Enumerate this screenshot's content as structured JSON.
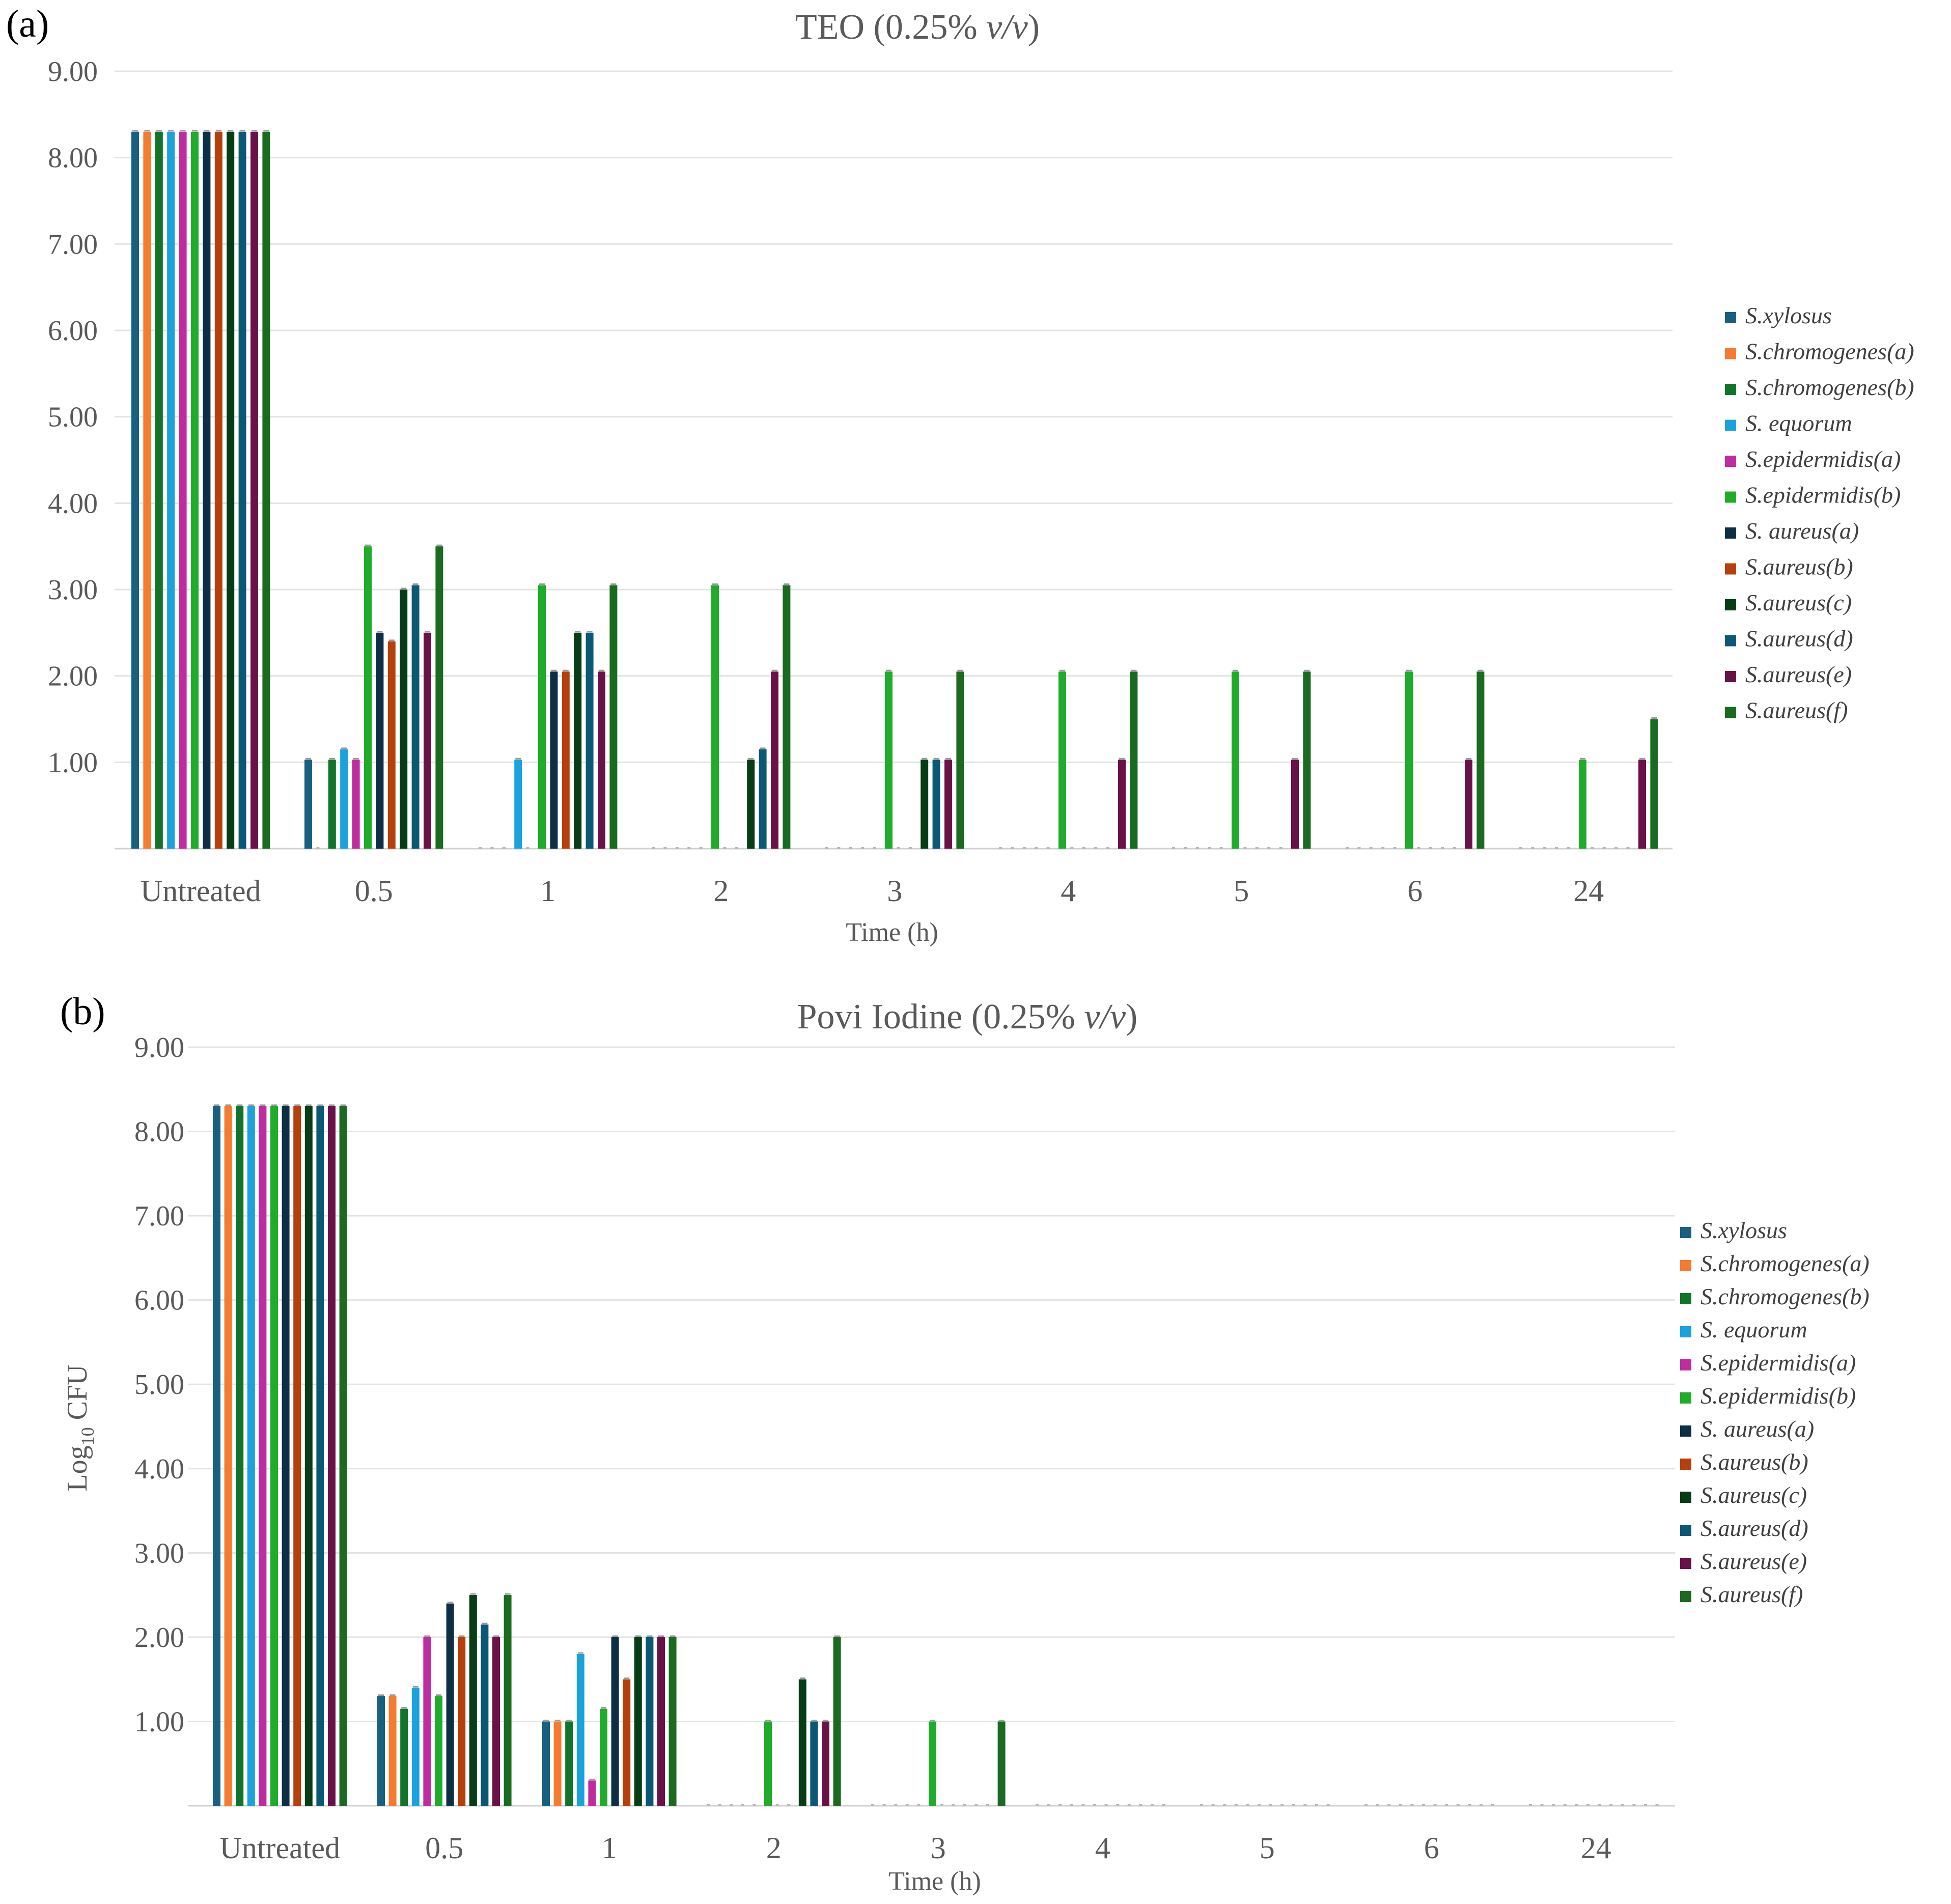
{
  "colors": [
    "#17607f",
    "#f47b30",
    "#11742b",
    "#1ba1dd",
    "#be2c9f",
    "#1fac2b",
    "#0c2f45",
    "#b5400c",
    "#063d16",
    "#0b5875",
    "#6a1248",
    "#1a6b20"
  ],
  "chart_data": [
    {
      "type": "bar",
      "panel_label": "(a)",
      "title_main": "TEO (0.25% ",
      "title_em": "v/v",
      "title_end": ")",
      "xlabel": "Time (h)",
      "ylabel": "",
      "ylim": [
        0,
        9
      ],
      "yticks": [
        "9.00",
        "8.00",
        "7.00",
        "6.00",
        "5.00",
        "4.00",
        "3.00",
        "2.00",
        "1.00"
      ],
      "categories": [
        "Untreated",
        "0.5",
        "1",
        "2",
        "3",
        "4",
        "5",
        "6",
        "24"
      ],
      "legend": [
        "S.xylosus",
        "S.chromogenes(a)",
        "S.chromogenes(b)",
        "S. equorum",
        "S.epidermidis(a)",
        "S.epidermidis(b)",
        "S. aureus(a)",
        "S.aureus(b)",
        "S.aureus(c)",
        "S.aureus(d)",
        "S.aureus(e)",
        "S.aureus(f)"
      ],
      "series": [
        {
          "name": "S.xylosus",
          "values": [
            8.3,
            1.03,
            0,
            0,
            0,
            0,
            0,
            0,
            0
          ]
        },
        {
          "name": "S.chromogenes(a)",
          "values": [
            8.3,
            0,
            0,
            0,
            0,
            0,
            0,
            0,
            0
          ]
        },
        {
          "name": "S.chromogenes(b)",
          "values": [
            8.3,
            1.03,
            0,
            0,
            0,
            0,
            0,
            0,
            0
          ]
        },
        {
          "name": "S. equorum",
          "values": [
            8.3,
            1.15,
            1.03,
            0,
            0,
            0,
            0,
            0,
            0
          ]
        },
        {
          "name": "S.epidermidis(a)",
          "values": [
            8.3,
            1.03,
            0,
            0,
            0,
            0,
            0,
            0,
            0
          ]
        },
        {
          "name": "S.epidermidis(b)",
          "values": [
            8.3,
            3.5,
            3.05,
            3.05,
            2.05,
            2.05,
            2.05,
            2.05,
            1.03
          ]
        },
        {
          "name": "S. aureus(a)",
          "values": [
            8.3,
            2.5,
            2.05,
            0,
            0,
            0,
            0,
            0,
            0
          ]
        },
        {
          "name": "S.aureus(b)",
          "values": [
            8.3,
            2.4,
            2.05,
            0,
            0,
            0,
            0,
            0,
            0
          ]
        },
        {
          "name": "S.aureus(c)",
          "values": [
            8.3,
            3.0,
            2.5,
            1.03,
            1.03,
            0,
            0,
            0,
            0
          ]
        },
        {
          "name": "S.aureus(d)",
          "values": [
            8.3,
            3.05,
            2.5,
            1.15,
            1.03,
            0,
            0,
            0,
            0
          ]
        },
        {
          "name": "S.aureus(e)",
          "values": [
            8.3,
            2.5,
            2.05,
            2.05,
            1.03,
            1.03,
            1.03,
            1.03,
            1.03
          ]
        },
        {
          "name": "S.aureus(f)",
          "values": [
            8.3,
            3.5,
            3.05,
            3.05,
            2.05,
            2.05,
            2.05,
            2.05,
            1.5
          ]
        }
      ]
    },
    {
      "type": "bar",
      "panel_label": "(b)",
      "title_main": "Povi Iodine (0.25% ",
      "title_em": "v/v",
      "title_end": ")",
      "xlabel": "Time (h)",
      "ylabel_main": "Log",
      "ylabel_sub": "10",
      "ylabel_end": " CFU",
      "ylim": [
        0,
        9
      ],
      "yticks": [
        "9.00",
        "8.00",
        "7.00",
        "6.00",
        "5.00",
        "4.00",
        "3.00",
        "2.00",
        "1.00"
      ],
      "categories": [
        "Untreated",
        "0.5",
        "1",
        "2",
        "3",
        "4",
        "5",
        "6",
        "24"
      ],
      "legend": [
        "S.xylosus",
        "S.chromogenes(a)",
        "S.chromogenes(b)",
        "S. equorum",
        "S.epidermidis(a)",
        "S.epidermidis(b)",
        "S. aureus(a)",
        "S.aureus(b)",
        "S.aureus(c)",
        "S.aureus(d)",
        "S.aureus(e)",
        "S.aureus(f)"
      ],
      "series": [
        {
          "name": "S.xylosus",
          "values": [
            8.3,
            1.3,
            1.0,
            0,
            0,
            0,
            0,
            0,
            0
          ]
        },
        {
          "name": "S.chromogenes(a)",
          "values": [
            8.3,
            1.3,
            1.0,
            0,
            0,
            0,
            0,
            0,
            0
          ]
        },
        {
          "name": "S.chromogenes(b)",
          "values": [
            8.3,
            1.15,
            1.0,
            0,
            0,
            0,
            0,
            0,
            0
          ]
        },
        {
          "name": "S. equorum",
          "values": [
            8.3,
            1.4,
            1.8,
            0,
            0,
            0,
            0,
            0,
            0
          ]
        },
        {
          "name": "S.epidermidis(a)",
          "values": [
            8.3,
            2.0,
            0.3,
            0,
            0,
            0,
            0,
            0,
            0
          ]
        },
        {
          "name": "S.epidermidis(b)",
          "values": [
            8.3,
            1.3,
            1.15,
            1.0,
            1.0,
            0,
            0,
            0,
            0
          ]
        },
        {
          "name": "S. aureus(a)",
          "values": [
            8.3,
            2.4,
            2.0,
            0,
            0,
            0,
            0,
            0,
            0
          ]
        },
        {
          "name": "S.aureus(b)",
          "values": [
            8.3,
            2.0,
            1.5,
            0,
            0,
            0,
            0,
            0,
            0
          ]
        },
        {
          "name": "S.aureus(c)",
          "values": [
            8.3,
            2.5,
            2.0,
            1.5,
            0,
            0,
            0,
            0,
            0
          ]
        },
        {
          "name": "S.aureus(d)",
          "values": [
            8.3,
            2.15,
            2.0,
            1.0,
            0,
            0,
            0,
            0,
            0
          ]
        },
        {
          "name": "S.aureus(e)",
          "values": [
            8.3,
            2.0,
            2.0,
            1.0,
            0,
            0,
            0,
            0,
            0
          ]
        },
        {
          "name": "S.aureus(f)",
          "values": [
            8.3,
            2.5,
            2.0,
            2.0,
            1.0,
            0,
            0,
            0,
            0
          ]
        }
      ]
    }
  ]
}
